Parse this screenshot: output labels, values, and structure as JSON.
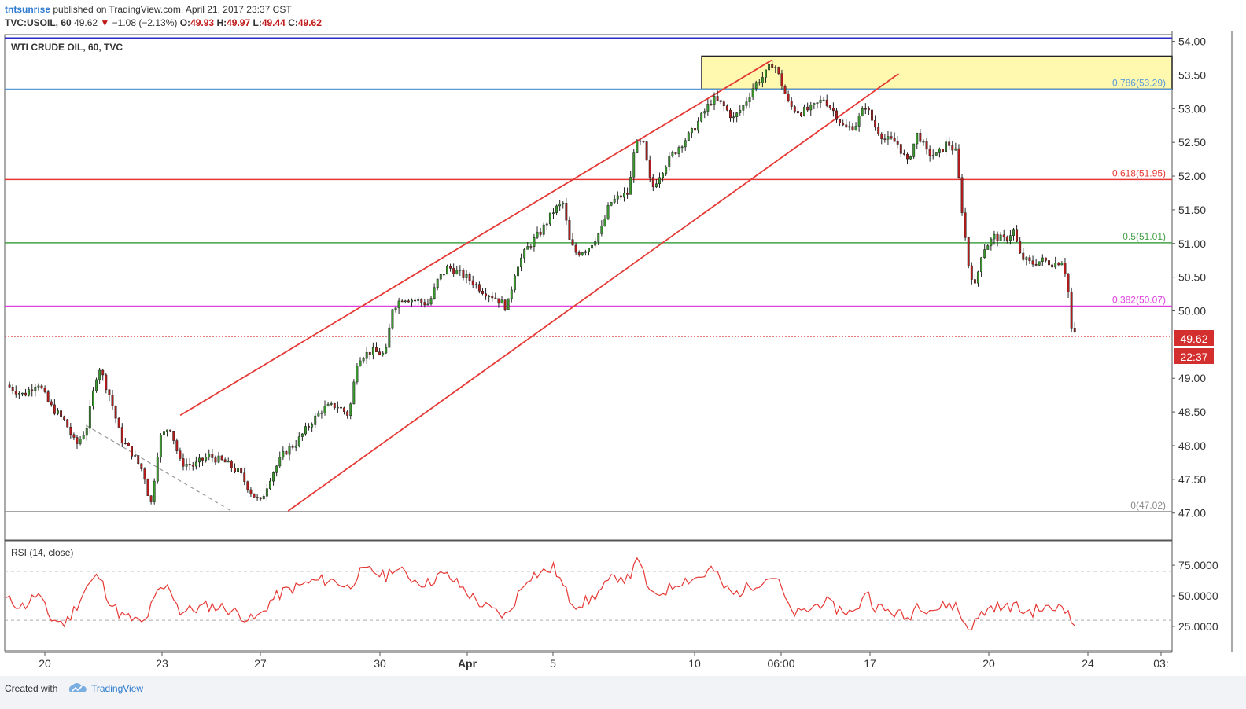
{
  "header": {
    "author": "tntsunrise",
    "published_text": "published on TradingView.com, April 21, 2017 23:37 CST",
    "symbol": "TVC:USOIL, 60",
    "last": "49.62",
    "change": "−1.08 (−2.13%)",
    "open_label": "O:",
    "open": "49.93",
    "high_label": "H:",
    "high": "49.97",
    "low_label": "L:",
    "low": "49.44",
    "close_label": "C:",
    "close": "49.62"
  },
  "footer": {
    "created_with": "Created with",
    "brand": "TradingView"
  },
  "chart_data": {
    "type": "line",
    "title": "WTI CRUDE OIL, 60, TVC",
    "description": "Hourly WTI crude oil candlestick price chart with Fibonacci retracement levels, rising wedge channel lines, and RSI panel",
    "x_tick_labels": [
      "20",
      "23",
      "27",
      "30",
      "Apr",
      "5",
      "10",
      "06:00",
      "17",
      "20",
      "24",
      "03:"
    ],
    "y_range": [
      46.6,
      54.1
    ],
    "y_ticks": [
      "54.00",
      "53.50",
      "53.00",
      "52.50",
      "52.00",
      "51.50",
      "51.00",
      "50.50",
      "50.00",
      "49.00",
      "48.50",
      "48.00",
      "47.50",
      "47.00"
    ],
    "last_price": "49.62",
    "countdown": "22:37",
    "fib_levels": [
      {
        "label": "0.786(53.29)",
        "value": 53.29,
        "color": "#5b9bd5"
      },
      {
        "label": "0.618(51.95)",
        "value": 51.95,
        "color": "#e53935"
      },
      {
        "label": "0.5(51.01)",
        "value": 51.01,
        "color": "#43a047"
      },
      {
        "label": "0.382(50.07)",
        "value": 50.07,
        "color": "#e040e0"
      },
      {
        "label": "0(47.02)",
        "value": 47.02,
        "color": "#888888"
      }
    ],
    "top_line_value": 54.05,
    "resistance_zone": {
      "low": 53.29,
      "high": 53.78
    },
    "price_series": {
      "name": "USOIL",
      "points": [
        [
          0,
          48.9
        ],
        [
          1.0,
          48.75
        ],
        [
          1.8,
          48.95
        ],
        [
          2.5,
          48.6
        ],
        [
          3.4,
          48.35
        ],
        [
          4.0,
          48.0
        ],
        [
          4.6,
          48.25
        ],
        [
          5.3,
          49.2
        ],
        [
          6.0,
          48.7
        ],
        [
          6.6,
          48.1
        ],
        [
          7.2,
          47.9
        ],
        [
          7.9,
          47.6
        ],
        [
          8.3,
          47.1
        ],
        [
          8.8,
          48.1
        ],
        [
          9.4,
          48.3
        ],
        [
          10.0,
          47.75
        ],
        [
          10.8,
          47.7
        ],
        [
          11.6,
          47.85
        ],
        [
          12.6,
          47.75
        ],
        [
          13.4,
          47.6
        ],
        [
          14.1,
          47.3
        ],
        [
          14.6,
          47.15
        ],
        [
          15.2,
          47.55
        ],
        [
          16.0,
          47.9
        ],
        [
          16.7,
          48.05
        ],
        [
          17.4,
          48.3
        ],
        [
          18.2,
          48.55
        ],
        [
          19.0,
          48.6
        ],
        [
          19.7,
          48.45
        ],
        [
          20.2,
          49.3
        ],
        [
          21.0,
          49.4
        ],
        [
          21.8,
          49.35
        ],
        [
          22.2,
          50.05
        ],
        [
          22.8,
          50.2
        ],
        [
          23.6,
          50.15
        ],
        [
          24.3,
          50.1
        ],
        [
          24.8,
          50.45
        ],
        [
          25.4,
          50.65
        ],
        [
          26.1,
          50.55
        ],
        [
          26.7,
          50.45
        ],
        [
          27.4,
          50.3
        ],
        [
          28.1,
          50.2
        ],
        [
          28.8,
          50.05
        ],
        [
          29.3,
          50.65
        ],
        [
          30.0,
          50.95
        ],
        [
          30.8,
          51.2
        ],
        [
          31.5,
          51.5
        ],
        [
          32.0,
          51.6
        ],
        [
          32.4,
          51.0
        ],
        [
          32.8,
          50.85
        ],
        [
          33.5,
          50.95
        ],
        [
          34.2,
          51.2
        ],
        [
          34.7,
          51.6
        ],
        [
          35.3,
          51.7
        ],
        [
          35.8,
          51.75
        ],
        [
          36.1,
          52.45
        ],
        [
          36.6,
          52.5
        ],
        [
          37.1,
          51.8
        ],
        [
          37.5,
          52.0
        ],
        [
          38.1,
          52.25
        ],
        [
          38.7,
          52.45
        ],
        [
          39.4,
          52.65
        ],
        [
          40.0,
          52.9
        ],
        [
          40.6,
          53.15
        ],
        [
          41.2,
          53.05
        ],
        [
          41.8,
          52.85
        ],
        [
          42.4,
          53.05
        ],
        [
          43.0,
          53.35
        ],
        [
          43.6,
          53.5
        ],
        [
          44.1,
          53.7
        ],
        [
          44.6,
          53.35
        ],
        [
          45.0,
          53.05
        ],
        [
          45.6,
          52.95
        ],
        [
          46.3,
          53.0
        ],
        [
          47.0,
          53.15
        ],
        [
          47.6,
          52.95
        ],
        [
          48.2,
          52.7
        ],
        [
          48.8,
          52.75
        ],
        [
          49.4,
          53.05
        ],
        [
          49.9,
          52.75
        ],
        [
          50.5,
          52.55
        ],
        [
          51.2,
          52.5
        ],
        [
          51.8,
          52.2
        ],
        [
          52.4,
          52.65
        ],
        [
          52.9,
          52.35
        ],
        [
          53.5,
          52.3
        ],
        [
          54.1,
          52.5
        ],
        [
          54.6,
          52.35
        ],
        [
          54.9,
          51.6
        ],
        [
          55.3,
          50.7
        ],
        [
          55.7,
          50.35
        ],
        [
          56.1,
          50.9
        ],
        [
          56.8,
          51.1
        ],
        [
          57.4,
          51.05
        ],
        [
          57.9,
          51.2
        ],
        [
          58.3,
          50.8
        ],
        [
          58.9,
          50.7
        ],
        [
          59.6,
          50.75
        ],
        [
          60.2,
          50.7
        ],
        [
          60.7,
          50.75
        ],
        [
          61.0,
          50.45
        ],
        [
          61.2,
          49.75
        ],
        [
          61.5,
          49.62
        ]
      ]
    },
    "rsi_panel": {
      "title": "RSI (14, close)",
      "y_ticks": [
        "75.0000",
        "50.0000",
        "25.0000"
      ],
      "levels": [
        70,
        30
      ],
      "series_points": [
        [
          0,
          47
        ],
        [
          1,
          41
        ],
        [
          1.8,
          52
        ],
        [
          2.5,
          32
        ],
        [
          3.4,
          27
        ],
        [
          4.0,
          41
        ],
        [
          4.6,
          57
        ],
        [
          5.3,
          67
        ],
        [
          6.0,
          44
        ],
        [
          6.6,
          34
        ],
        [
          7.2,
          31
        ],
        [
          7.9,
          27
        ],
        [
          8.3,
          40
        ],
        [
          8.8,
          55
        ],
        [
          9.4,
          57
        ],
        [
          10.0,
          37
        ],
        [
          10.8,
          39
        ],
        [
          11.6,
          42
        ],
        [
          12.6,
          40
        ],
        [
          13.4,
          35
        ],
        [
          14.1,
          30
        ],
        [
          14.6,
          34
        ],
        [
          15.2,
          46
        ],
        [
          16.0,
          54
        ],
        [
          16.7,
          57
        ],
        [
          17.4,
          61
        ],
        [
          18.2,
          63
        ],
        [
          19.0,
          62
        ],
        [
          19.7,
          56
        ],
        [
          20.2,
          68
        ],
        [
          21.0,
          71
        ],
        [
          21.8,
          65
        ],
        [
          22.2,
          73
        ],
        [
          22.8,
          69
        ],
        [
          23.6,
          62
        ],
        [
          24.3,
          60
        ],
        [
          24.8,
          67
        ],
        [
          25.4,
          66
        ],
        [
          26.1,
          58
        ],
        [
          26.7,
          50
        ],
        [
          27.4,
          42
        ],
        [
          28.1,
          37
        ],
        [
          28.8,
          33
        ],
        [
          29.3,
          48
        ],
        [
          30.0,
          66
        ],
        [
          30.8,
          69
        ],
        [
          31.5,
          73
        ],
        [
          32.0,
          58
        ],
        [
          32.4,
          47
        ],
        [
          32.8,
          43
        ],
        [
          33.5,
          46
        ],
        [
          34.2,
          55
        ],
        [
          34.7,
          62
        ],
        [
          35.3,
          67
        ],
        [
          35.8,
          62
        ],
        [
          36.1,
          80
        ],
        [
          36.6,
          70
        ],
        [
          37.1,
          48
        ],
        [
          37.5,
          52
        ],
        [
          38.1,
          56
        ],
        [
          38.7,
          62
        ],
        [
          39.4,
          64
        ],
        [
          40.0,
          66
        ],
        [
          40.6,
          73
        ],
        [
          41.2,
          58
        ],
        [
          41.8,
          51
        ],
        [
          42.4,
          55
        ],
        [
          43.0,
          60
        ],
        [
          43.6,
          63
        ],
        [
          44.1,
          67
        ],
        [
          44.6,
          55
        ],
        [
          45.0,
          38
        ],
        [
          45.6,
          35
        ],
        [
          46.3,
          40
        ],
        [
          47.0,
          46
        ],
        [
          47.6,
          40
        ],
        [
          48.2,
          38
        ],
        [
          48.8,
          35
        ],
        [
          49.4,
          55
        ],
        [
          49.9,
          42
        ],
        [
          50.5,
          38
        ],
        [
          51.2,
          36
        ],
        [
          51.8,
          31
        ],
        [
          52.4,
          44
        ],
        [
          52.9,
          40
        ],
        [
          53.5,
          39
        ],
        [
          54.1,
          43
        ],
        [
          54.6,
          42
        ],
        [
          54.9,
          32
        ],
        [
          55.3,
          24
        ],
        [
          55.7,
          28
        ],
        [
          56.1,
          36
        ],
        [
          56.8,
          42
        ],
        [
          57.4,
          39
        ],
        [
          57.9,
          43
        ],
        [
          58.3,
          38
        ],
        [
          58.9,
          37
        ],
        [
          59.6,
          40
        ],
        [
          60.2,
          38
        ],
        [
          60.7,
          46
        ],
        [
          61.0,
          36
        ],
        [
          61.2,
          29
        ],
        [
          61.5,
          27
        ]
      ]
    }
  }
}
